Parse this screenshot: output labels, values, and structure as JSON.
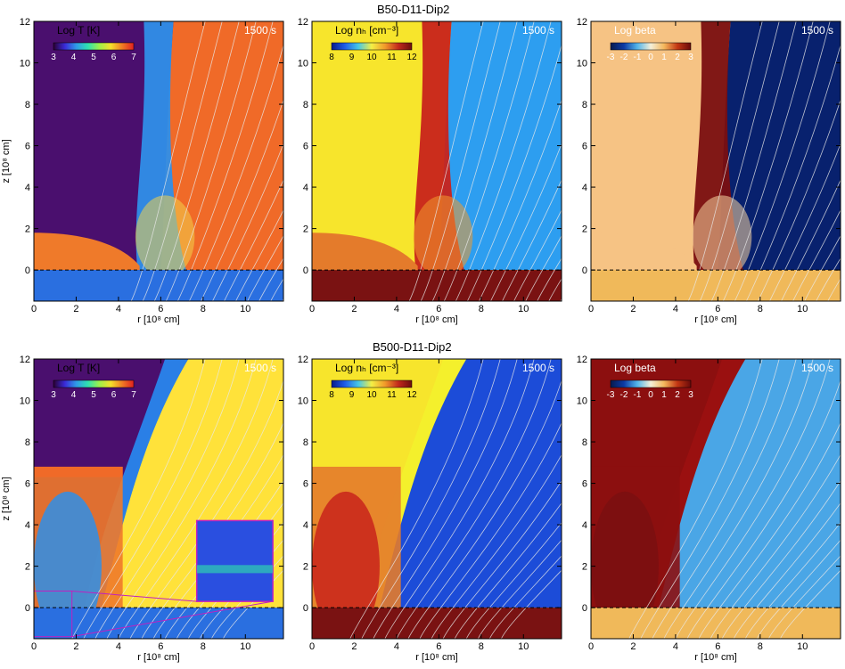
{
  "figure": {
    "rows": [
      {
        "title": "B50-D11-Dip2",
        "panels": [
          {
            "id": "r1p1",
            "label": "Log T [K]",
            "time": "1500 s",
            "cbar_ticks": [
              "3",
              "4",
              "5",
              "6",
              "7"
            ],
            "field": "temperature",
            "show_ylabel": true
          },
          {
            "id": "r1p2",
            "label": "Log nₕ [cm⁻³]",
            "time": "1500 s",
            "cbar_ticks": [
              "8",
              "9",
              "10",
              "11",
              "12"
            ],
            "field": "density",
            "show_ylabel": false
          },
          {
            "id": "r1p3",
            "label": "Log beta",
            "time": "1500 s",
            "cbar_ticks": [
              "-3",
              "-2",
              "-1",
              "0",
              "1",
              "2",
              "3"
            ],
            "field": "beta",
            "show_ylabel": false
          }
        ]
      },
      {
        "title": "B500-D11-Dip2",
        "panels": [
          {
            "id": "r2p1",
            "label": "Log T [K]",
            "time": "1500 s",
            "cbar_ticks": [
              "3",
              "4",
              "5",
              "6",
              "7"
            ],
            "field": "temperature",
            "show_ylabel": true,
            "inset": true
          },
          {
            "id": "r2p2",
            "label": "Log nₕ [cm⁻³]",
            "time": "1500 s",
            "cbar_ticks": [
              "8",
              "9",
              "10",
              "11",
              "12"
            ],
            "field": "density",
            "show_ylabel": false
          },
          {
            "id": "r2p3",
            "label": "Log beta",
            "time": "1500 s",
            "cbar_ticks": [
              "-3",
              "-2",
              "-1",
              "0",
              "1",
              "2",
              "3"
            ],
            "field": "beta",
            "show_ylabel": false
          }
        ]
      }
    ],
    "x_axis": {
      "label": "r [10⁸ cm]",
      "ticks": [
        "0",
        "2",
        "4",
        "6",
        "8",
        "10"
      ]
    },
    "y_axis": {
      "label": "z [10⁸ cm]",
      "ticks": [
        "-0",
        "0",
        "2",
        "4",
        "6",
        "8",
        "10",
        "12"
      ]
    },
    "colors": {
      "temperature_cold": "#4a0f6e",
      "temperature_hot": "#f06a28",
      "temperature_mid": "#ffe23a",
      "density_low": "#1a4bd6",
      "density_mid": "#fbe72d",
      "density_high": "#7a1010",
      "beta_low": "#08216e",
      "beta_mid": "#4aa6e6",
      "beta_high": "#f6c384",
      "beta_vhigh": "#8c0f0f",
      "fieldlines": "#e8e8e8",
      "inset_border": "#c020c0"
    }
  }
}
